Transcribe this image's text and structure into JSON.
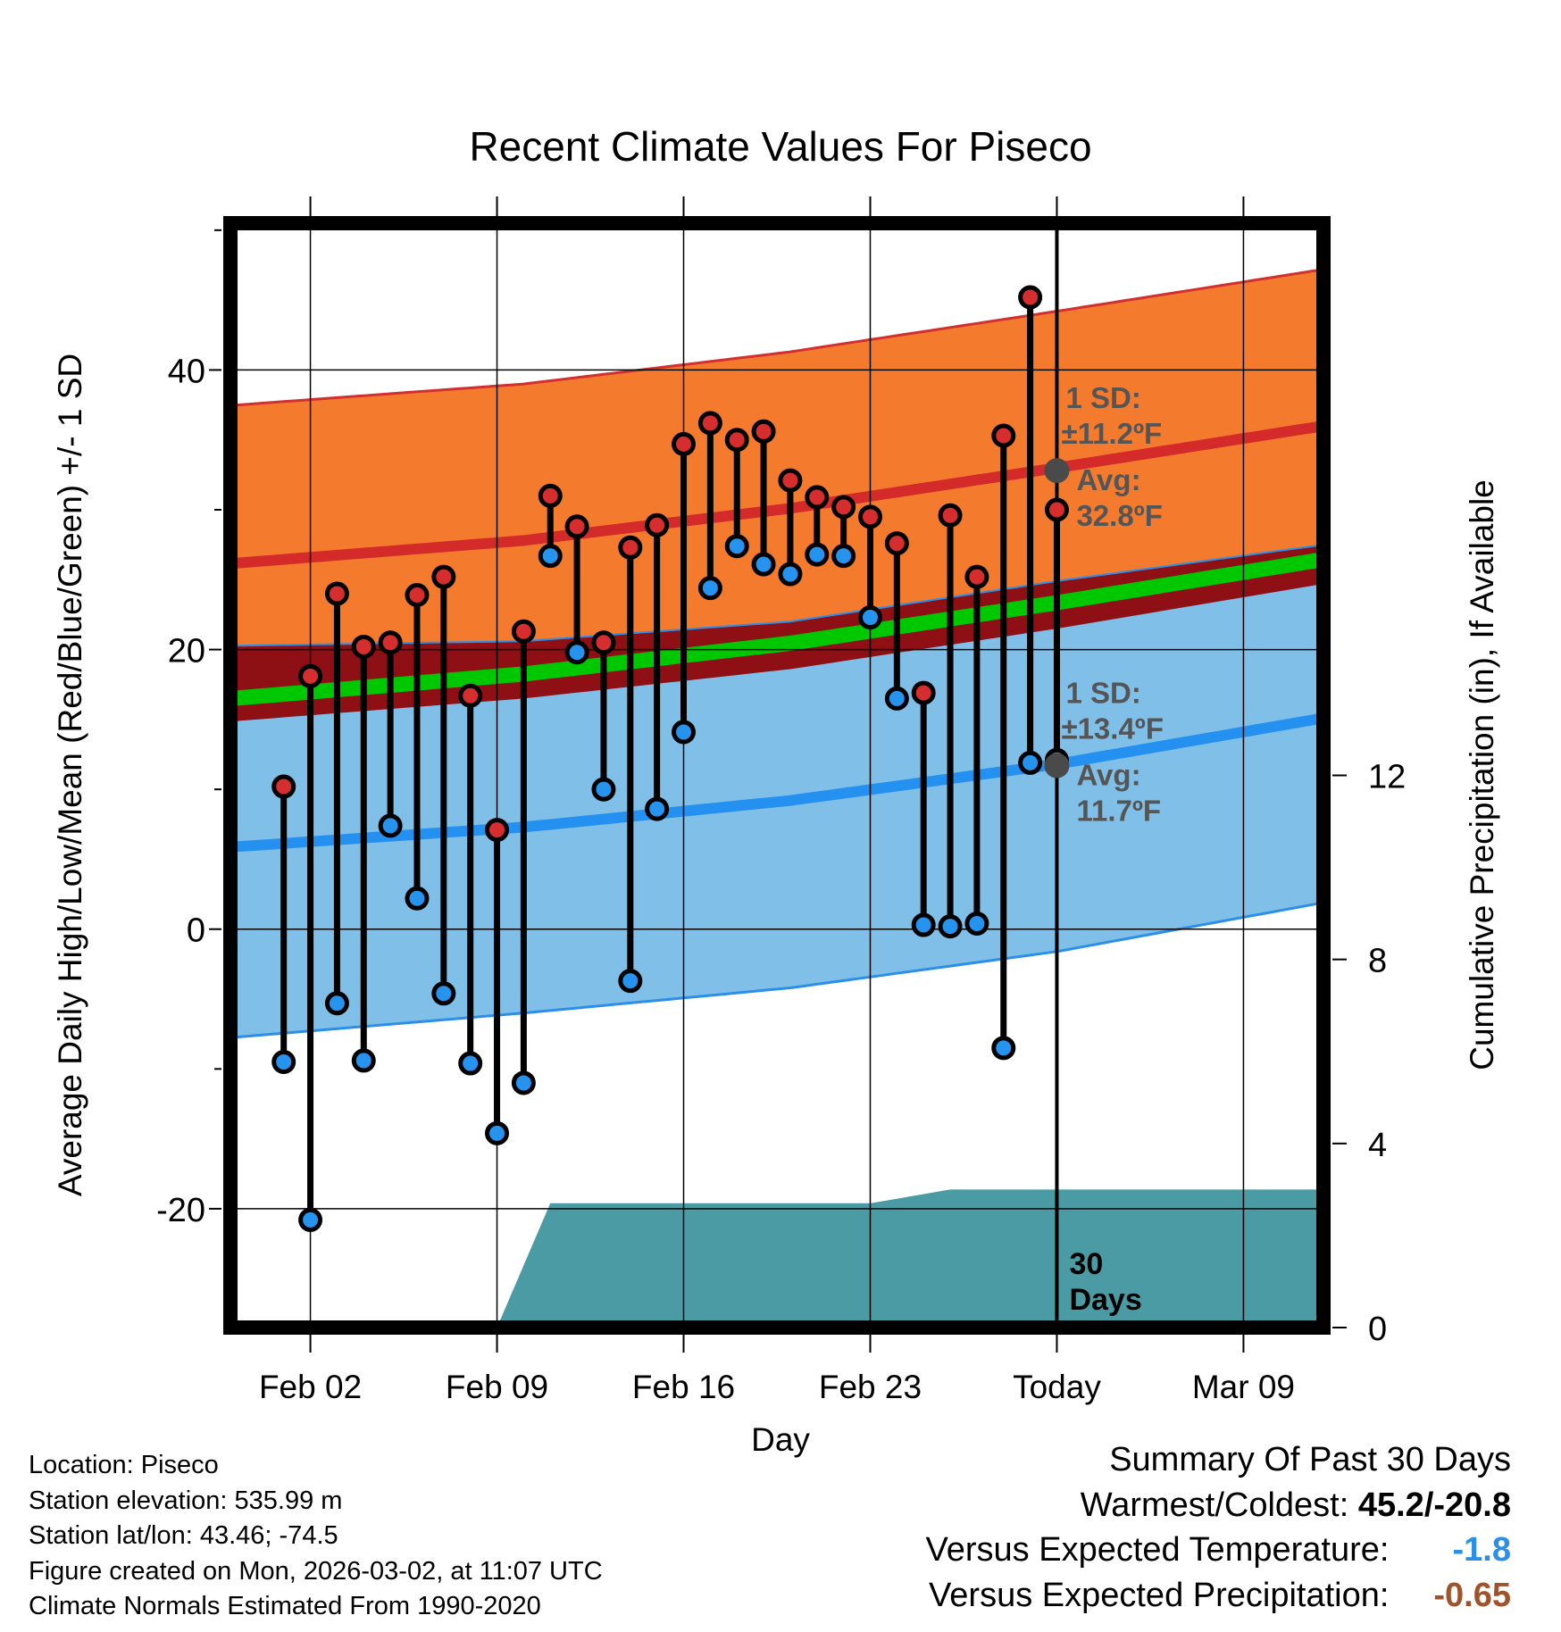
{
  "chart_data": {
    "type": "line",
    "title": "Recent Climate Values For Piseco",
    "xlabel": "Day",
    "ylabel": "Average Daily High/Low/Mean (Red/Blue/Green) +/- 1 SD",
    "y2label": "Cumulative Precipitation (in), If Available",
    "x_day_range": [
      -1,
      40
    ],
    "ylim": [
      -28.5,
      50.5
    ],
    "y2lim": [
      0,
      24
    ],
    "y_ticks": [
      -20,
      0,
      20,
      40
    ],
    "y2_ticks": [
      0,
      4,
      8,
      12
    ],
    "x_ticks": [
      {
        "day": 2,
        "label": "Feb 02"
      },
      {
        "day": 9,
        "label": "Feb 09"
      },
      {
        "day": 16,
        "label": "Feb 16"
      },
      {
        "day": 23,
        "label": "Feb 23"
      },
      {
        "day": 30,
        "label": "Today"
      },
      {
        "day": 37,
        "label": "Mar 09"
      }
    ],
    "today_day": 30,
    "window_label": "30 Days",
    "colors": {
      "high_band": "#F47B2E",
      "high_band_edge": "#D03030",
      "high_mean_line": "#D42A2A",
      "low_band": "#80C0E8",
      "low_band_edge": "#2B8FE8",
      "low_mean_line": "#2490F0",
      "mean_band": "#8E0F14",
      "mean_band_inner": "#00C800",
      "precip_fill": "#4A9BA4",
      "high_dot": "#D62E2E",
      "low_dot": "#2694EF",
      "today_dot": "#4A4A4A",
      "annotation": "#555555"
    },
    "normals": {
      "days": [
        0,
        10,
        20,
        30,
        40
      ],
      "high_mean": [
        26.3,
        27.8,
        30.1,
        33.0,
        36.0
      ],
      "high_upper": [
        37.6,
        39.0,
        41.3,
        44.2,
        47.2
      ],
      "high_lower": [
        20.3,
        20.6,
        22.0,
        24.9,
        27.5
      ],
      "low_mean": [
        6.0,
        7.3,
        9.2,
        11.8,
        15.1
      ],
      "low_upper": [
        20.3,
        20.6,
        22.0,
        24.9,
        27.5
      ],
      "low_lower": [
        -7.6,
        -6.0,
        -4.2,
        -1.6,
        1.9
      ],
      "mean_band_upper": [
        20.3,
        20.6,
        22.0,
        24.9,
        27.5
      ],
      "mean_band_lower": [
        15.0,
        16.5,
        18.6,
        21.5,
        24.7
      ],
      "green_lower": [
        16.1,
        17.7,
        19.9,
        22.8,
        25.9
      ]
    },
    "days": [
      1,
      2,
      3,
      4,
      5,
      6,
      7,
      8,
      9,
      10,
      11,
      12,
      13,
      14,
      15,
      16,
      17,
      18,
      19,
      20,
      21,
      22,
      23,
      24,
      25,
      26,
      27,
      28,
      29,
      30
    ],
    "highs": [
      10.2,
      18.1,
      24.0,
      20.2,
      20.5,
      23.9,
      25.2,
      16.7,
      7.1,
      21.3,
      31.0,
      28.8,
      20.5,
      27.3,
      28.9,
      34.7,
      36.2,
      35.0,
      35.6,
      32.1,
      30.9,
      30.2,
      29.5,
      27.6,
      16.9,
      29.6,
      25.2,
      35.3,
      45.2,
      30.0
    ],
    "lows": [
      -9.5,
      -20.8,
      -5.3,
      -9.4,
      7.4,
      2.2,
      -4.6,
      -9.6,
      -14.6,
      -11.0,
      26.7,
      19.8,
      10.0,
      -3.7,
      8.6,
      14.1,
      24.4,
      27.4,
      26.1,
      25.4,
      26.8,
      26.7,
      22.3,
      16.5,
      0.3,
      0.2,
      0.4,
      -8.5,
      11.9,
      12.1
    ],
    "precip_cumulative": {
      "days": [
        -1,
        9,
        11,
        23,
        24,
        26,
        30,
        40
      ],
      "values": [
        0,
        0,
        2.7,
        2.7,
        2.8,
        3.0,
        3.0,
        3.0
      ]
    },
    "annotations": {
      "high_sd_label": "1 SD:",
      "high_sd_value": "±11.2ºF",
      "high_avg_label": "Avg:",
      "high_avg_value": "32.8ºF",
      "high_avg": 32.8,
      "low_sd_label": "1 SD:",
      "low_sd_value": "±13.4ºF",
      "low_avg_label": "Avg:",
      "low_avg_value": "11.7ºF",
      "low_avg": 11.7
    }
  },
  "meta": {
    "location": "Location: Piseco",
    "elevation": "Station elevation: 535.99 m",
    "latlon": "Station lat/lon: 43.46; -74.5",
    "created": "Figure created on Mon, 2026-03-02, at 11:07 UTC",
    "normals": "Climate Normals Estimated From 1990-2020"
  },
  "summary": {
    "title": "Summary Of Past 30 Days",
    "warm_cold_label": "Warmest/Coldest:",
    "warm_cold_value": "45.2/-20.8",
    "temp_label": "Versus Expected Temperature:",
    "temp_value": "-1.8",
    "temp_color": "#2B8FE8",
    "precip_label": "Versus Expected Precipitation:",
    "precip_value": "-0.65",
    "precip_color": "#A0522D"
  }
}
